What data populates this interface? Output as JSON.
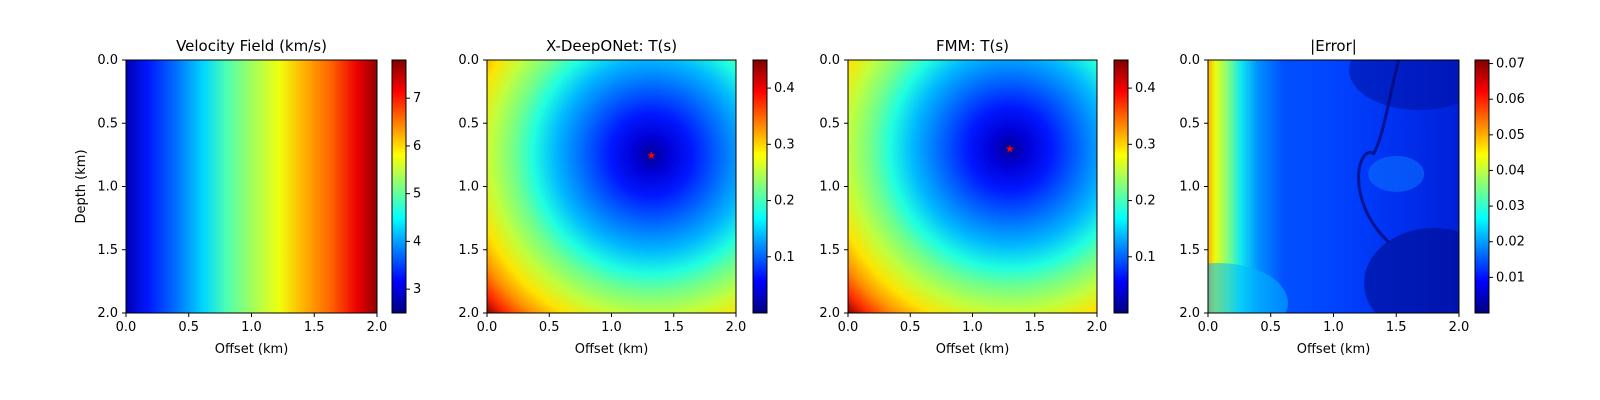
{
  "figure": {
    "shared_xlabel": "Offset (km)",
    "shared_ylabel": "Depth (km)",
    "colormap": "jet",
    "jet_stops": [
      "#00007f",
      "#0000ff",
      "#007fff",
      "#00ffff",
      "#7fff7f",
      "#ffff00",
      "#ff7f00",
      "#ff0000",
      "#7f0000"
    ]
  },
  "chart_data": [
    {
      "type": "heatmap",
      "title": "Velocity Field (km/s)",
      "xlabel": "Offset (km)",
      "ylabel": "Depth (km)",
      "xlim": [
        0.0,
        2.0
      ],
      "ylim": [
        2.0,
        0.0
      ],
      "xticks": [
        "0.0",
        "0.5",
        "1.0",
        "1.5",
        "2.0"
      ],
      "yticks": [
        "0.0",
        "0.5",
        "1.0",
        "1.5",
        "2.0"
      ],
      "field": "velocity varies with offset only, increasing left to right",
      "colorbar": {
        "range": [
          2.5,
          7.8
        ],
        "ticks": [
          3,
          4,
          5,
          6,
          7
        ]
      },
      "source_marker": null
    },
    {
      "type": "heatmap",
      "title": "X-DeepONet: T(s)",
      "xlabel": "Offset (km)",
      "ylabel": "",
      "xlim": [
        0.0,
        2.0
      ],
      "ylim": [
        2.0,
        0.0
      ],
      "xticks": [
        "0.0",
        "0.5",
        "1.0",
        "1.5",
        "2.0"
      ],
      "yticks": [
        "0.0",
        "0.5",
        "1.0",
        "1.5",
        "2.0"
      ],
      "field": "traveltime from source",
      "colorbar": {
        "range": [
          0.0,
          0.45
        ],
        "ticks": [
          0.1,
          0.2,
          0.3,
          0.4
        ]
      },
      "source_marker": {
        "symbol": "★",
        "x_km": 1.32,
        "z_km": 0.75,
        "color": "#ff0000"
      }
    },
    {
      "type": "heatmap",
      "title": "FMM: T(s)",
      "xlabel": "Offset (km)",
      "ylabel": "",
      "xlim": [
        0.0,
        2.0
      ],
      "ylim": [
        2.0,
        0.0
      ],
      "xticks": [
        "0.0",
        "0.5",
        "1.0",
        "1.5",
        "2.0"
      ],
      "yticks": [
        "0.0",
        "0.5",
        "1.0",
        "1.5",
        "2.0"
      ],
      "field": "traveltime from source",
      "colorbar": {
        "range": [
          0.0,
          0.45
        ],
        "ticks": [
          0.1,
          0.2,
          0.3,
          0.4
        ]
      },
      "source_marker": {
        "symbol": "★",
        "x_km": 1.3,
        "z_km": 0.7,
        "color": "#ff0000"
      }
    },
    {
      "type": "heatmap",
      "title": "|Error|",
      "xlabel": "Offset (km)",
      "ylabel": "",
      "xlim": [
        0.0,
        2.0
      ],
      "ylim": [
        2.0,
        0.0
      ],
      "xticks": [
        "0.0",
        "0.5",
        "1.0",
        "1.5",
        "2.0"
      ],
      "yticks": [
        "0.0",
        "0.5",
        "1.0",
        "1.5",
        "2.0"
      ],
      "field": "absolute traveltime error, largest near left edge",
      "colorbar": {
        "range": [
          0.0,
          0.071
        ],
        "ticks": [
          0.01,
          0.02,
          0.03,
          0.04,
          0.05,
          0.06,
          0.07
        ]
      },
      "source_marker": null
    }
  ]
}
